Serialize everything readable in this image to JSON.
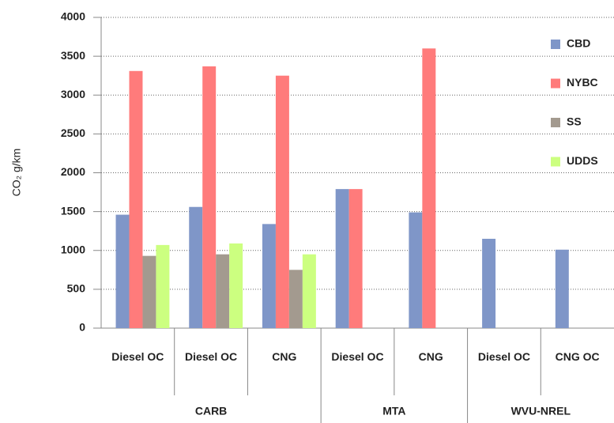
{
  "chart_data": {
    "type": "bar",
    "y_label": "CO₂ g/km",
    "categories": [
      "Diesel OC",
      "Diesel OC",
      "CNG",
      "Diesel OC",
      "CNG",
      "Diesel OC",
      "CNG OC"
    ],
    "groups": [
      {
        "label": "CARB",
        "span": 3
      },
      {
        "label": "MTA",
        "span": 2
      },
      {
        "label": "WVU-NREL",
        "span": 2
      }
    ],
    "series": [
      {
        "name": "CBD",
        "color": "#7f96c8",
        "values": [
          1460,
          1560,
          1340,
          1790,
          1490,
          1150,
          1010
        ]
      },
      {
        "name": "NYBC",
        "color": "#ff7b7b",
        "values": [
          3310,
          3370,
          3250,
          1790,
          3600,
          null,
          null
        ]
      },
      {
        "name": "SS",
        "color": "#a39a8f",
        "values": [
          930,
          950,
          750,
          null,
          null,
          null,
          null
        ]
      },
      {
        "name": "UDDS",
        "color": "#ccff80",
        "values": [
          1070,
          1090,
          950,
          null,
          null,
          null,
          null
        ]
      }
    ],
    "ylim": [
      0,
      4000
    ],
    "yticks": [
      0,
      500,
      1000,
      1500,
      2000,
      2500,
      3000,
      3500,
      4000
    ],
    "grid": true,
    "legend": "right"
  }
}
